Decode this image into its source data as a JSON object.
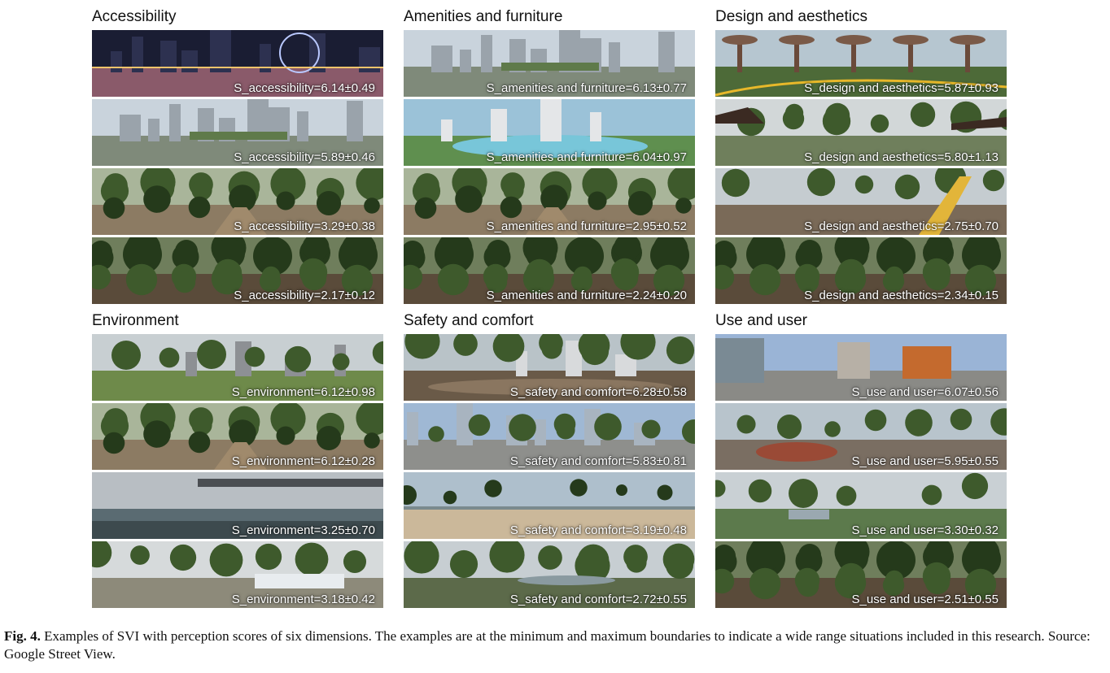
{
  "groups": [
    {
      "title": "Accessibility",
      "images": [
        {
          "score": "S_accessibility=6.14±0.49",
          "scene": "night-city-ferris-wheel"
        },
        {
          "score": "S_accessibility=5.89±0.46",
          "scene": "urban-plaza"
        },
        {
          "score": "S_accessibility=3.29±0.38",
          "scene": "forest-path"
        },
        {
          "score": "S_accessibility=2.17±0.12",
          "scene": "dense-forest"
        }
      ]
    },
    {
      "title": "Amenities and furniture",
      "images": [
        {
          "score": "S_amenities and furniture=6.13±0.77",
          "scene": "urban-plaza"
        },
        {
          "score": "S_amenities and furniture=6.04±0.97",
          "scene": "pool-deck"
        },
        {
          "score": "S_amenities and furniture=2.95±0.52",
          "scene": "forest-path"
        },
        {
          "score": "S_amenities and furniture=2.24±0.20",
          "scene": "dense-forest"
        }
      ]
    },
    {
      "title": "Design and aesthetics",
      "images": [
        {
          "score": "S_design and aesthetics=5.87±0.93",
          "scene": "supertree-garden"
        },
        {
          "score": "S_design and aesthetics=5.80±1.13",
          "scene": "garden-pavilion"
        },
        {
          "score": "S_design and aesthetics=2.75±0.70",
          "scene": "hillside-stairs"
        },
        {
          "score": "S_design and aesthetics=2.34±0.15",
          "scene": "dense-forest"
        }
      ]
    },
    {
      "title": "Environment",
      "images": [
        {
          "score": "S_environment=6.12±0.98",
          "scene": "park-lawn"
        },
        {
          "score": "S_environment=6.12±0.28",
          "scene": "forest-path"
        },
        {
          "score": "S_environment=3.25±0.70",
          "scene": "canal-bridge"
        },
        {
          "score": "S_environment=3.18±0.42",
          "scene": "construction-site"
        }
      ]
    },
    {
      "title": "Safety and comfort",
      "images": [
        {
          "score": "S_safety and comfort=6.28±0.58",
          "scene": "tree-lined-walk"
        },
        {
          "score": "S_safety and comfort=5.83±0.81",
          "scene": "urban-park"
        },
        {
          "score": "S_safety and comfort=3.19±0.48",
          "scene": "beach"
        },
        {
          "score": "S_safety and comfort=2.72±0.55",
          "scene": "forest-pond"
        }
      ]
    },
    {
      "title": "Use and user",
      "images": [
        {
          "score": "S_use and user=6.07±0.56",
          "scene": "building-entrance"
        },
        {
          "score": "S_use and user=5.95±0.55",
          "scene": "playground"
        },
        {
          "score": "S_use and user=3.30±0.32",
          "scene": "open-field"
        },
        {
          "score": "S_use and user=2.51±0.55",
          "scene": "dense-forest"
        }
      ]
    }
  ],
  "caption": {
    "label": "Fig. 4.",
    "text": " Examples of SVI with perception scores of six dimensions. The examples are at the minimum and maximum boundaries to indicate a wide range situations included in this research. Source: Google Street View."
  },
  "colors": {
    "sky": "#c9d3dc",
    "foliage": "#3e5a2c",
    "foliage_dark": "#253a1b",
    "ground": "#8c7b63",
    "building": "#9aa3ab",
    "night": "#1a1d33",
    "water": "#5a6b72",
    "sand": "#cbb89a"
  }
}
